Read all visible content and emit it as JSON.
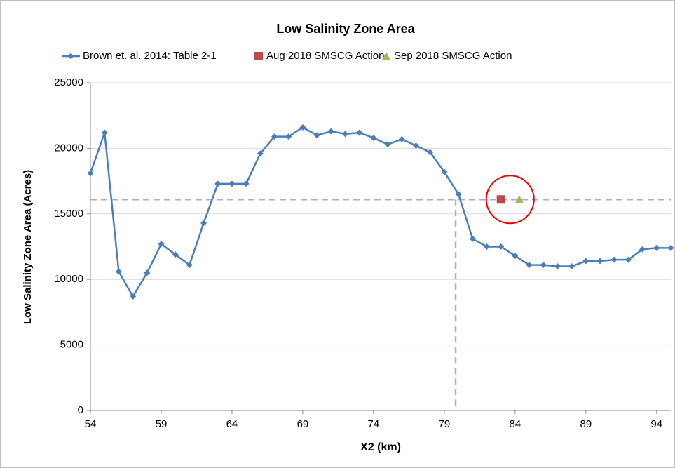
{
  "chart_data": {
    "type": "line",
    "title": "Low Salinity Zone Area",
    "x_label": "X2 (km)",
    "y_label": "Low Salinity Zone Area (Acres)",
    "xlim": [
      54,
      95
    ],
    "xticks": [
      54,
      59,
      64,
      69,
      74,
      79,
      84,
      89,
      94
    ],
    "ylim": [
      0,
      25000
    ],
    "yticks": [
      0,
      5000,
      10000,
      15000,
      20000,
      25000
    ],
    "grid": true,
    "reference_lines": {
      "y": 16100,
      "x": 79.8,
      "color": "#b4a7d6"
    },
    "series": [
      {
        "name": "Brown et. al. 2014: Table 2-1",
        "color": "#4a7ebb",
        "marker": "diamond",
        "x": [
          54,
          55,
          56,
          57,
          58,
          59,
          60,
          61,
          62,
          63,
          64,
          65,
          66,
          67,
          68,
          69,
          70,
          71,
          72,
          73,
          74,
          75,
          76,
          77,
          78,
          79,
          80,
          81,
          82,
          83,
          84,
          85,
          86,
          87,
          88,
          89,
          90,
          91,
          92,
          93,
          94,
          95
        ],
        "values": [
          18100,
          21200,
          10600,
          8700,
          10500,
          12700,
          11900,
          11100,
          14300,
          17300,
          17300,
          17300,
          19600,
          20900,
          20900,
          21600,
          21000,
          21300,
          21100,
          21200,
          20800,
          20300,
          20700,
          20200,
          19700,
          18200,
          16500,
          13100,
          12500,
          12500,
          11800,
          11100,
          11100,
          11000,
          11000,
          11400,
          11400,
          11500,
          11500,
          12300,
          12400,
          12400
        ]
      },
      {
        "name": "Aug 2018 SMSCG Action",
        "color": "#be4b48",
        "marker": "square",
        "x": [
          83.0
        ],
        "values": [
          16100
        ]
      },
      {
        "name": "Sep 2018 SMSCG Action",
        "color": "#9bbb59",
        "marker": "triangle",
        "x": [
          84.3
        ],
        "values": [
          16100
        ]
      }
    ]
  }
}
